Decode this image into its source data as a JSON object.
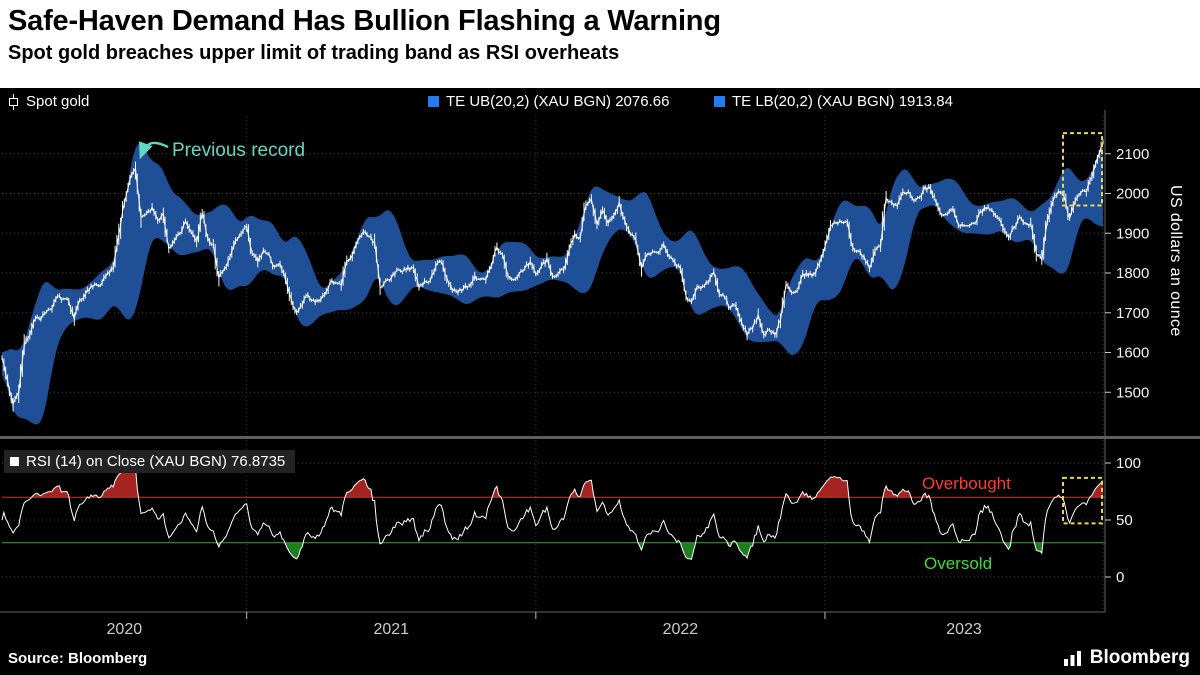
{
  "header": {
    "title": "Safe-Haven Demand Has Bullion Flashing a Warning",
    "subtitle": "Spot gold breaches upper limit of trading band as RSI overheats"
  },
  "legend": {
    "spot": "Spot gold",
    "ub": "TE UB(20,2) (XAU BGN) 2076.66",
    "lb": "TE LB(20,2) (XAU BGN) 1913.84",
    "rsi": "RSI (14) on Close (XAU BGN) 76.8735"
  },
  "annotations": {
    "previous_record": "Previous record",
    "overbought": "Overbought",
    "oversold": "Oversold"
  },
  "axis": {
    "y_unit": "US dollars an ounce",
    "x_labels": [
      "2020",
      "2021",
      "2022",
      "2023"
    ]
  },
  "footer": {
    "source": "Source: Bloomberg",
    "brand": "Bloomberg"
  },
  "colors": {
    "band": "#1f4f96",
    "price": "#ffffff",
    "legend_blue": "#2579f2",
    "overbought_line": "#c43a2e",
    "oversold_line": "#37a837",
    "overbought_fill": "#a32420",
    "oversold_fill": "#1e7d1e",
    "overbought_label": "#ff3b30",
    "oversold_label": "#3ddc3d",
    "highlight": "#ecd64b",
    "annotation": "#63d6c4",
    "grid": "#3c3c3c"
  },
  "chart_data": {
    "type": "candlestick",
    "title": "Spot gold with trading band TE(20,2) and RSI(14)",
    "x": {
      "unit": "week",
      "freq": "weekly",
      "year_start_indices": [
        44,
        96,
        148
      ],
      "n_weeks": 199
    },
    "price_panel": {
      "series_name": "Spot gold",
      "unit": "US dollars an ounce",
      "ylim": [
        1395,
        2195
      ],
      "ticks": [
        1500,
        1600,
        1700,
        1800,
        1900,
        2000,
        2100
      ],
      "band": {
        "name": "TE UB/LB (20,2) (XAU BGN)",
        "upper_latest": 2076.66,
        "lower_latest": 1913.84,
        "window": 20,
        "stdev_mult": 2
      },
      "previous_record_price": 2075,
      "latest_high": 2135,
      "weekly_close": [
        1586,
        1529,
        1470,
        1498,
        1617,
        1645,
        1685,
        1683,
        1702,
        1710,
        1742,
        1735,
        1730,
        1685,
        1732,
        1747,
        1768,
        1771,
        1775,
        1800,
        1810,
        1897,
        1976,
        2035,
        2063,
        1940,
        1950,
        1965,
        1933,
        1950,
        1862,
        1881,
        1899,
        1930,
        1903,
        1879,
        1951,
        1889,
        1871,
        1788,
        1810,
        1840,
        1881,
        1899,
        1917,
        1850,
        1828,
        1856,
        1848,
        1815,
        1824,
        1784,
        1734,
        1701,
        1720,
        1745,
        1732,
        1729,
        1744,
        1777,
        1776,
        1769,
        1831,
        1844,
        1881,
        1904,
        1892,
        1878,
        1764,
        1781,
        1787,
        1808,
        1802,
        1814,
        1814,
        1763,
        1780,
        1781,
        1818,
        1828,
        1788,
        1755,
        1751,
        1761,
        1768,
        1793,
        1784,
        1783,
        1817,
        1865,
        1846,
        1792,
        1783,
        1798,
        1811,
        1829,
        1797,
        1817,
        1835,
        1792,
        1797,
        1808,
        1859,
        1899,
        1889,
        1970,
        1985,
        1922,
        1958,
        1926,
        1946,
        1978,
        1932,
        1897,
        1884,
        1812,
        1846,
        1854,
        1851,
        1872,
        1840,
        1827,
        1811,
        1742,
        1728,
        1766,
        1766,
        1776,
        1802,
        1747,
        1738,
        1712,
        1716,
        1676,
        1644,
        1661,
        1695,
        1644,
        1657,
        1645,
        1682,
        1771,
        1751,
        1755,
        1798,
        1793,
        1798,
        1824,
        1866,
        1920,
        1926,
        1928,
        1929,
        1865,
        1856,
        1842,
        1811,
        1856,
        1868,
        1989,
        1978,
        1969,
        2004,
        2004,
        1983,
        1990,
        2016,
        2011,
        1977,
        1946,
        1948,
        1961,
        1921,
        1919,
        1919,
        1925,
        1955,
        1962,
        1959,
        1940,
        1914,
        1890,
        1915,
        1940,
        1925,
        1925,
        1849,
        1833,
        1932,
        1981,
        2006,
        1992,
        1938,
        1981,
        2002,
        2004,
        2041,
        2089,
        2130
      ]
    },
    "rsi_panel": {
      "series_name": "RSI (14) on Close (XAU BGN)",
      "latest": 76.8735,
      "overbought_level": 70,
      "oversold_level": 30,
      "ylim": [
        0,
        100
      ],
      "ticks": [
        0,
        50,
        100
      ]
    }
  }
}
